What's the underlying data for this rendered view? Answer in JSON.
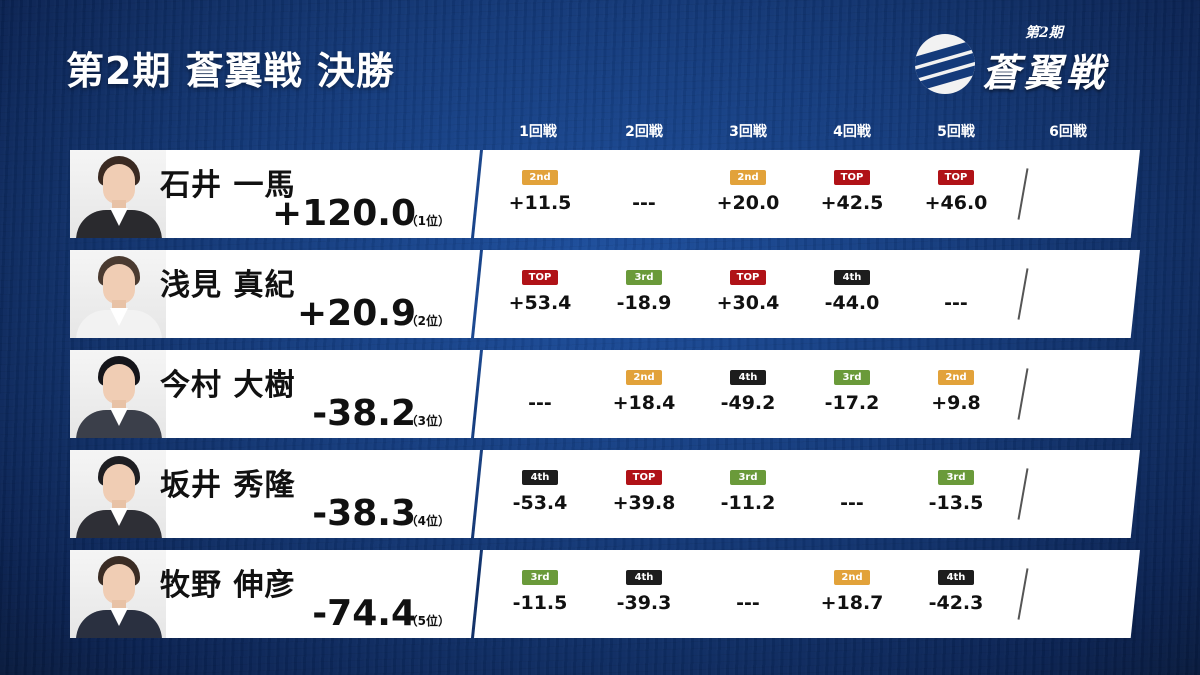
{
  "title": "第2期 蒼翼戦 決勝",
  "logo": {
    "main": "蒼翼戦",
    "sub": "第2期"
  },
  "rounds": [
    "1回戦",
    "2回戦",
    "3回戦",
    "4回戦",
    "5回戦",
    "6回戦"
  ],
  "badge_colors": {
    "TOP": "#b01217",
    "2nd": "#e2a23a",
    "3rd": "#6a9a3a",
    "4th": "#1d1d1d"
  },
  "players": [
    {
      "name": "石井 一馬",
      "total": "+120.0",
      "rank": "（1位）",
      "results": [
        {
          "badge": "2nd",
          "score": "+11.5"
        },
        {
          "badge": "",
          "score": "---"
        },
        {
          "badge": "2nd",
          "score": "+20.0"
        },
        {
          "badge": "TOP",
          "score": "+42.5"
        },
        {
          "badge": "TOP",
          "score": "+46.0"
        }
      ]
    },
    {
      "name": "浅見 真紀",
      "total": "+20.9",
      "rank": "（2位）",
      "results": [
        {
          "badge": "TOP",
          "score": "+53.4"
        },
        {
          "badge": "3rd",
          "score": "-18.9"
        },
        {
          "badge": "TOP",
          "score": "+30.4"
        },
        {
          "badge": "4th",
          "score": "-44.0"
        },
        {
          "badge": "",
          "score": "---"
        }
      ]
    },
    {
      "name": "今村 大樹",
      "total": "-38.2",
      "rank": "（3位）",
      "results": [
        {
          "badge": "",
          "score": "---"
        },
        {
          "badge": "2nd",
          "score": "+18.4"
        },
        {
          "badge": "4th",
          "score": "-49.2"
        },
        {
          "badge": "3rd",
          "score": "-17.2"
        },
        {
          "badge": "2nd",
          "score": "+9.8"
        }
      ]
    },
    {
      "name": "坂井 秀隆",
      "total": "-38.3",
      "rank": "（4位）",
      "results": [
        {
          "badge": "4th",
          "score": "-53.4"
        },
        {
          "badge": "TOP",
          "score": "+39.8"
        },
        {
          "badge": "3rd",
          "score": "-11.2"
        },
        {
          "badge": "",
          "score": "---"
        },
        {
          "badge": "3rd",
          "score": "-13.5"
        }
      ]
    },
    {
      "name": "牧野 伸彦",
      "total": "-74.4",
      "rank": "（5位）",
      "results": [
        {
          "badge": "3rd",
          "score": "-11.5"
        },
        {
          "badge": "4th",
          "score": "-39.3"
        },
        {
          "badge": "",
          "score": "---"
        },
        {
          "badge": "2nd",
          "score": "+18.7"
        },
        {
          "badge": "4th",
          "score": "-42.3"
        }
      ]
    }
  ]
}
